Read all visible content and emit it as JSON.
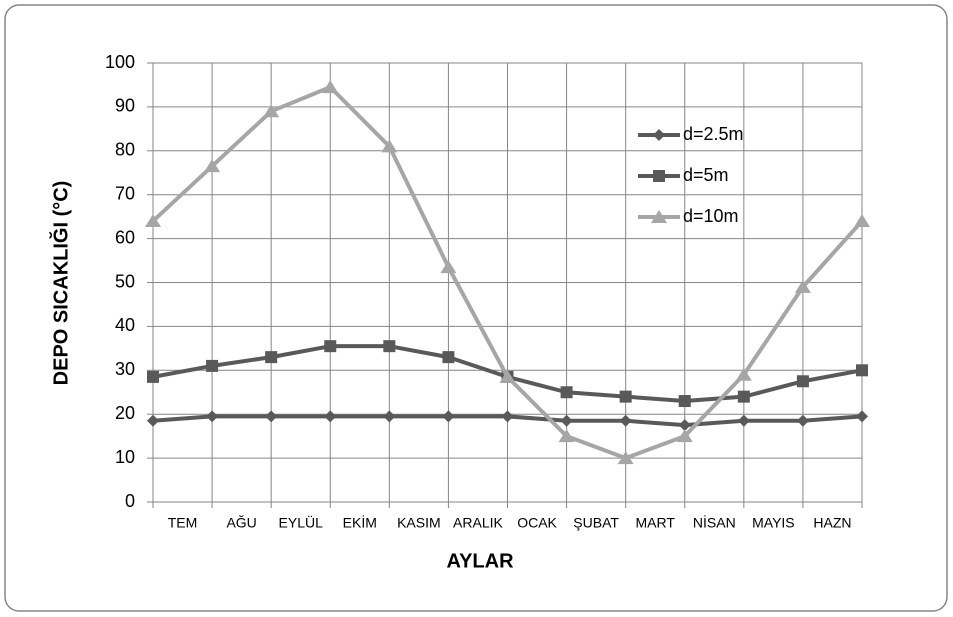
{
  "chart_data": {
    "type": "line",
    "xlabel": "AYLAR",
    "ylabel": "DEPO SICAKLIĞI (°C)",
    "categories": [
      "TEM",
      "AĞU",
      "EYLÜL",
      "EKİM",
      "KASIM",
      "ARALIK",
      "OCAK",
      "ŞUBAT",
      "MART",
      "NİSAN",
      "MAYIS",
      "HAZN",
      null
    ],
    "series": [
      {
        "name": "d=2.5m",
        "color": "#595959",
        "marker": "diamond",
        "values": [
          18.5,
          19.5,
          19.5,
          19.5,
          19.5,
          19.5,
          19.5,
          18.5,
          18.5,
          17.5,
          18.5,
          18.5,
          19.5
        ]
      },
      {
        "name": "d=5m",
        "color": "#595959",
        "marker": "square",
        "values": [
          28.5,
          31,
          33,
          35.5,
          35.5,
          33,
          28.5,
          25,
          24,
          23,
          24,
          27.5,
          30
        ]
      },
      {
        "name": "d=10m",
        "color": "#a6a6a6",
        "marker": "triangle",
        "values": [
          64,
          76.5,
          89,
          94.5,
          81,
          53.5,
          28.5,
          15,
          10,
          15,
          29,
          49,
          64
        ]
      }
    ],
    "ylim": [
      0,
      100
    ],
    "yticks": [
      0,
      10,
      20,
      30,
      40,
      50,
      60,
      70,
      80,
      90,
      100
    ],
    "grid": true,
    "legend": "upper right"
  }
}
